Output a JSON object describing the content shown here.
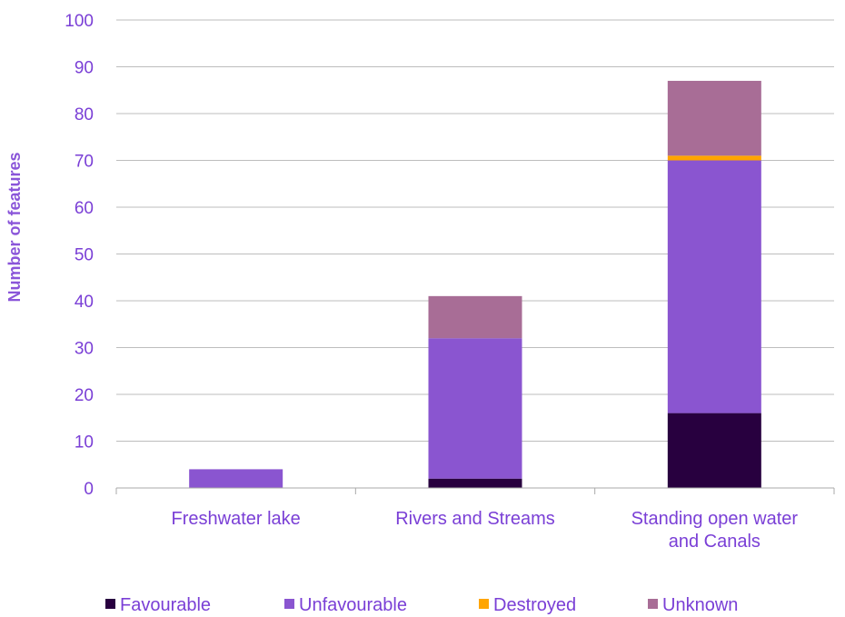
{
  "chart_data": {
    "type": "bar",
    "stacked": true,
    "title": "",
    "xlabel": "",
    "ylabel": "Number of features",
    "ylim": [
      0,
      100
    ],
    "yticks": [
      0,
      10,
      20,
      30,
      40,
      50,
      60,
      70,
      80,
      90,
      100
    ],
    "grid": true,
    "legend_position": "bottom",
    "categories": [
      [
        "Freshwater lake"
      ],
      [
        "Rivers and Streams"
      ],
      [
        "Standing open water",
        "and Canals"
      ]
    ],
    "series": [
      {
        "name": "Favourable",
        "color": "#28003f",
        "values": [
          0,
          2,
          16
        ]
      },
      {
        "name": "Unfavourable",
        "color": "#8a55d0",
        "values": [
          4,
          30,
          54
        ]
      },
      {
        "name": "Destroyed",
        "color": "#ffa500",
        "values": [
          0,
          0,
          1
        ]
      },
      {
        "name": "Unknown",
        "color": "#a86d96",
        "values": [
          0,
          9,
          16
        ]
      }
    ]
  }
}
